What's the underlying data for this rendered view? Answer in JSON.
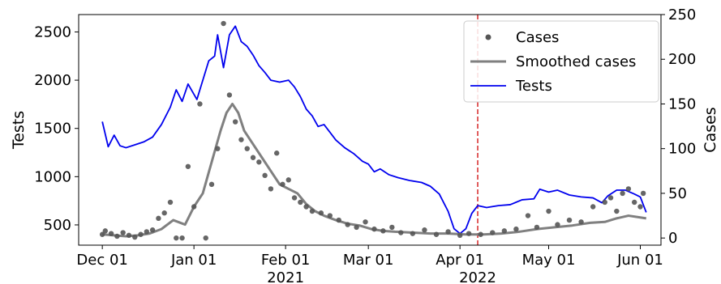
{
  "chart_data": {
    "type": "line",
    "x_type": "date",
    "x_tick_labels": [
      "Dec 01",
      "Jan 01",
      "Feb 01",
      "Mar 01",
      "Apr 01",
      "May 01",
      "Jun 01"
    ],
    "x_tick_dates": [
      "2021-12-01",
      "2022-01-01",
      "2022-02-01",
      "2022-03-01",
      "2022-04-01",
      "2022-05-01",
      "2022-06-01"
    ],
    "x_year_labels": [
      {
        "label": "2021",
        "date": "2022-02-01"
      },
      {
        "label": "2022",
        "date": "2022-04-07"
      }
    ],
    "xlim": [
      "2021-11-23",
      "2022-06-08"
    ],
    "ylabel_left": "Tests",
    "ylabel_right": "Cases",
    "ylim_left": [
      290,
      2680
    ],
    "ylim_right": [
      -8,
      250
    ],
    "yticks_left": [
      500,
      1000,
      1500,
      2000,
      2500
    ],
    "yticks_right": [
      0,
      50,
      100,
      150,
      200,
      250
    ],
    "vline": {
      "date": "2022-04-07",
      "color": "#d62728",
      "style": "dashed"
    },
    "legend": {
      "position": "top-right",
      "entries": [
        "Cases",
        "Smoothed cases",
        "Tests"
      ]
    },
    "grid": false,
    "series": [
      {
        "name": "Tests",
        "axis": "left",
        "color": "#0000ee",
        "style": "line",
        "points": [
          [
            "2021-12-01",
            1570
          ],
          [
            "2021-12-03",
            1310
          ],
          [
            "2021-12-05",
            1430
          ],
          [
            "2021-12-07",
            1320
          ],
          [
            "2021-12-09",
            1300
          ],
          [
            "2021-12-12",
            1330
          ],
          [
            "2021-12-15",
            1360
          ],
          [
            "2021-12-18",
            1410
          ],
          [
            "2021-12-21",
            1540
          ],
          [
            "2021-12-24",
            1720
          ],
          [
            "2021-12-26",
            1900
          ],
          [
            "2021-12-28",
            1780
          ],
          [
            "2021-12-30",
            1960
          ],
          [
            "2022-01-02",
            1800
          ],
          [
            "2022-01-04",
            2000
          ],
          [
            "2022-01-06",
            2200
          ],
          [
            "2022-01-08",
            2250
          ],
          [
            "2022-01-09",
            2470
          ],
          [
            "2022-01-11",
            2130
          ],
          [
            "2022-01-13",
            2470
          ],
          [
            "2022-01-15",
            2560
          ],
          [
            "2022-01-17",
            2400
          ],
          [
            "2022-01-19",
            2350
          ],
          [
            "2022-01-21",
            2260
          ],
          [
            "2022-01-23",
            2150
          ],
          [
            "2022-01-25",
            2080
          ],
          [
            "2022-01-27",
            2000
          ],
          [
            "2022-01-30",
            1980
          ],
          [
            "2022-02-02",
            2000
          ],
          [
            "2022-02-04",
            1930
          ],
          [
            "2022-02-06",
            1830
          ],
          [
            "2022-02-08",
            1700
          ],
          [
            "2022-02-10",
            1630
          ],
          [
            "2022-02-12",
            1520
          ],
          [
            "2022-02-14",
            1540
          ],
          [
            "2022-02-16",
            1460
          ],
          [
            "2022-02-18",
            1380
          ],
          [
            "2022-02-21",
            1300
          ],
          [
            "2022-02-24",
            1240
          ],
          [
            "2022-02-27",
            1160
          ],
          [
            "2022-03-01",
            1130
          ],
          [
            "2022-03-03",
            1050
          ],
          [
            "2022-03-05",
            1080
          ],
          [
            "2022-03-08",
            1020
          ],
          [
            "2022-03-11",
            990
          ],
          [
            "2022-03-15",
            960
          ],
          [
            "2022-03-19",
            940
          ],
          [
            "2022-03-22",
            900
          ],
          [
            "2022-03-25",
            820
          ],
          [
            "2022-03-28",
            640
          ],
          [
            "2022-03-30",
            460
          ],
          [
            "2022-04-01",
            410
          ],
          [
            "2022-04-03",
            460
          ],
          [
            "2022-04-05",
            620
          ],
          [
            "2022-04-07",
            700
          ],
          [
            "2022-04-10",
            680
          ],
          [
            "2022-04-14",
            700
          ],
          [
            "2022-04-18",
            710
          ],
          [
            "2022-04-22",
            760
          ],
          [
            "2022-04-26",
            770
          ],
          [
            "2022-04-28",
            870
          ],
          [
            "2022-05-01",
            840
          ],
          [
            "2022-05-04",
            860
          ],
          [
            "2022-05-08",
            810
          ],
          [
            "2022-05-12",
            790
          ],
          [
            "2022-05-16",
            780
          ],
          [
            "2022-05-19",
            730
          ],
          [
            "2022-05-21",
            800
          ],
          [
            "2022-05-24",
            860
          ],
          [
            "2022-05-27",
            860
          ],
          [
            "2022-05-30",
            820
          ],
          [
            "2022-06-01",
            790
          ],
          [
            "2022-06-03",
            630
          ]
        ]
      },
      {
        "name": "Smoothed cases",
        "axis": "right",
        "color": "#808080",
        "style": "line",
        "points": [
          [
            "2021-12-01",
            4
          ],
          [
            "2021-12-05",
            3
          ],
          [
            "2021-12-09",
            2
          ],
          [
            "2021-12-13",
            3
          ],
          [
            "2021-12-17",
            5
          ],
          [
            "2021-12-21",
            10
          ],
          [
            "2021-12-25",
            20
          ],
          [
            "2021-12-29",
            15
          ],
          [
            "2022-01-01",
            35
          ],
          [
            "2022-01-04",
            50
          ],
          [
            "2022-01-07",
            85
          ],
          [
            "2022-01-10",
            120
          ],
          [
            "2022-01-12",
            140
          ],
          [
            "2022-01-14",
            150
          ],
          [
            "2022-01-16",
            140
          ],
          [
            "2022-01-18",
            120
          ],
          [
            "2022-01-21",
            105
          ],
          [
            "2022-01-24",
            90
          ],
          [
            "2022-01-27",
            75
          ],
          [
            "2022-01-30",
            60
          ],
          [
            "2022-02-02",
            55
          ],
          [
            "2022-02-05",
            50
          ],
          [
            "2022-02-08",
            38
          ],
          [
            "2022-02-11",
            30
          ],
          [
            "2022-02-14",
            25
          ],
          [
            "2022-02-18",
            20
          ],
          [
            "2022-02-22",
            16
          ],
          [
            "2022-02-26",
            14
          ],
          [
            "2022-03-02",
            10
          ],
          [
            "2022-03-06",
            8
          ],
          [
            "2022-03-10",
            7
          ],
          [
            "2022-03-16",
            6
          ],
          [
            "2022-03-22",
            5
          ],
          [
            "2022-03-28",
            5
          ],
          [
            "2022-04-03",
            4
          ],
          [
            "2022-04-09",
            4
          ],
          [
            "2022-04-15",
            5
          ],
          [
            "2022-04-21",
            7
          ],
          [
            "2022-04-27",
            10
          ],
          [
            "2022-05-03",
            12
          ],
          [
            "2022-05-09",
            14
          ],
          [
            "2022-05-15",
            17
          ],
          [
            "2022-05-20",
            18
          ],
          [
            "2022-05-24",
            22
          ],
          [
            "2022-05-28",
            25
          ],
          [
            "2022-06-01",
            23
          ],
          [
            "2022-06-03",
            22
          ]
        ]
      },
      {
        "name": "Cases",
        "axis": "right",
        "color": "#555555",
        "style": "scatter",
        "points": [
          [
            "2021-12-01",
            4
          ],
          [
            "2021-12-02",
            8
          ],
          [
            "2021-12-04",
            5
          ],
          [
            "2021-12-06",
            2
          ],
          [
            "2021-12-08",
            6
          ],
          [
            "2021-12-10",
            3
          ],
          [
            "2021-12-12",
            1
          ],
          [
            "2021-12-14",
            4
          ],
          [
            "2021-12-16",
            7
          ],
          [
            "2021-12-18",
            9
          ],
          [
            "2021-12-20",
            22
          ],
          [
            "2021-12-22",
            28
          ],
          [
            "2021-12-24",
            40
          ],
          [
            "2021-12-26",
            0
          ],
          [
            "2021-12-28",
            0
          ],
          [
            "2021-12-30",
            80
          ],
          [
            "2022-01-01",
            35
          ],
          [
            "2022-01-03",
            150
          ],
          [
            "2022-01-05",
            0
          ],
          [
            "2022-01-07",
            60
          ],
          [
            "2022-01-09",
            100
          ],
          [
            "2022-01-11",
            240
          ],
          [
            "2022-01-13",
            160
          ],
          [
            "2022-01-15",
            130
          ],
          [
            "2022-01-17",
            110
          ],
          [
            "2022-01-19",
            100
          ],
          [
            "2022-01-21",
            90
          ],
          [
            "2022-01-23",
            85
          ],
          [
            "2022-01-25",
            70
          ],
          [
            "2022-01-27",
            55
          ],
          [
            "2022-01-29",
            95
          ],
          [
            "2022-01-31",
            60
          ],
          [
            "2022-02-02",
            65
          ],
          [
            "2022-02-04",
            45
          ],
          [
            "2022-02-06",
            40
          ],
          [
            "2022-02-08",
            35
          ],
          [
            "2022-02-10",
            30
          ],
          [
            "2022-02-13",
            28
          ],
          [
            "2022-02-16",
            25
          ],
          [
            "2022-02-19",
            20
          ],
          [
            "2022-02-22",
            15
          ],
          [
            "2022-02-25",
            12
          ],
          [
            "2022-02-28",
            18
          ],
          [
            "2022-03-03",
            10
          ],
          [
            "2022-03-06",
            8
          ],
          [
            "2022-03-09",
            12
          ],
          [
            "2022-03-12",
            6
          ],
          [
            "2022-03-16",
            5
          ],
          [
            "2022-03-20",
            9
          ],
          [
            "2022-03-24",
            4
          ],
          [
            "2022-03-28",
            7
          ],
          [
            "2022-04-01",
            3
          ],
          [
            "2022-04-04",
            5
          ],
          [
            "2022-04-08",
            4
          ],
          [
            "2022-04-12",
            6
          ],
          [
            "2022-04-16",
            8
          ],
          [
            "2022-04-20",
            10
          ],
          [
            "2022-04-24",
            25
          ],
          [
            "2022-04-27",
            12
          ],
          [
            "2022-05-01",
            30
          ],
          [
            "2022-05-04",
            15
          ],
          [
            "2022-05-08",
            20
          ],
          [
            "2022-05-12",
            18
          ],
          [
            "2022-05-16",
            35
          ],
          [
            "2022-05-20",
            40
          ],
          [
            "2022-05-22",
            45
          ],
          [
            "2022-05-24",
            30
          ],
          [
            "2022-05-26",
            50
          ],
          [
            "2022-05-28",
            55
          ],
          [
            "2022-05-30",
            40
          ],
          [
            "2022-06-01",
            35
          ],
          [
            "2022-06-02",
            50
          ]
        ]
      }
    ]
  }
}
